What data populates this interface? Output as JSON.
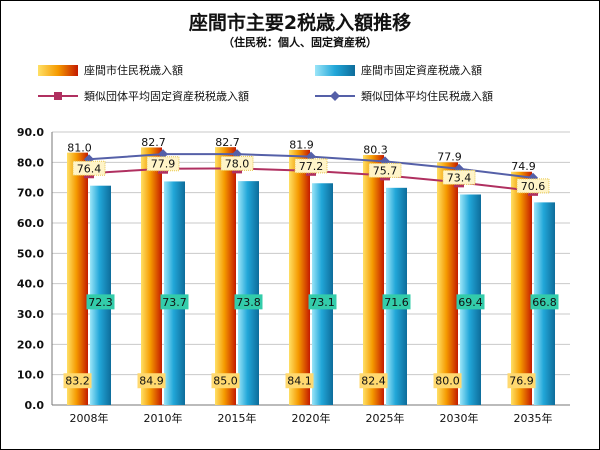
{
  "title": "座間市主要2税歳入額推移",
  "subtitle": "（住民税：個人、固定資産税）",
  "colors": {
    "resident_bar": "#F5A000",
    "property_bar": "#22A7D9",
    "similar_property_line": "#B03060",
    "similar_resident_line": "#5560A8",
    "value_box_resident": "#FFD970",
    "value_box_property": "#33CCAA"
  },
  "legend": [
    {
      "label": "座間市住民税歳入額",
      "kind": "bar",
      "color": "#F5A000"
    },
    {
      "label": "座間市固定資産税歳入額",
      "kind": "bar",
      "color": "#22A7D9"
    },
    {
      "label": "類似団体平均固定資産税税歳入額",
      "kind": "line",
      "marker": "square",
      "color": "#B03060"
    },
    {
      "label": "類似団体平均住民税歳入額",
      "kind": "line",
      "marker": "diamond",
      "color": "#5560A8"
    }
  ],
  "chart_data": {
    "type": "bar",
    "categories": [
      "2008年",
      "2010年",
      "2015年",
      "2020年",
      "2025年",
      "2030年",
      "2035年"
    ],
    "ylim": [
      0,
      90
    ],
    "ytick_labels": [
      "0.0",
      "10.0",
      "20.0",
      "30.0",
      "40.0",
      "50.0",
      "60.0",
      "70.0",
      "80.0",
      "90.0"
    ],
    "grid": true,
    "series": [
      {
        "name": "座間市住民税歳入額",
        "type": "bar",
        "values": [
          83.2,
          84.9,
          85.0,
          84.1,
          82.4,
          80.0,
          76.9
        ],
        "labels": [
          "83.2",
          "84.9",
          "85.0",
          "84.1",
          "82.4",
          "80.0",
          "76.9"
        ]
      },
      {
        "name": "座間市固定資産税歳入額",
        "type": "bar",
        "values": [
          72.3,
          73.7,
          73.8,
          73.1,
          71.6,
          69.4,
          66.8
        ],
        "labels": [
          "72.3",
          "73.7",
          "73.8",
          "73.1",
          "71.6",
          "69.4",
          "66.8"
        ]
      },
      {
        "name": "類似団体平均固定資産税税歳入額",
        "type": "line",
        "values": [
          76.4,
          77.9,
          78.0,
          77.2,
          75.7,
          73.4,
          70.6
        ],
        "labels": [
          "76.4",
          "77.9",
          "78.0",
          "77.2",
          "75.7",
          "73.4",
          "70.6"
        ]
      },
      {
        "name": "類似団体平均住民税歳入額",
        "type": "line",
        "values": [
          81.0,
          82.7,
          82.7,
          81.9,
          80.3,
          77.9,
          74.9
        ],
        "labels": [
          "81.0",
          "82.7",
          "82.7",
          "81.9",
          "80.3",
          "77.9",
          "74.9"
        ]
      }
    ]
  }
}
